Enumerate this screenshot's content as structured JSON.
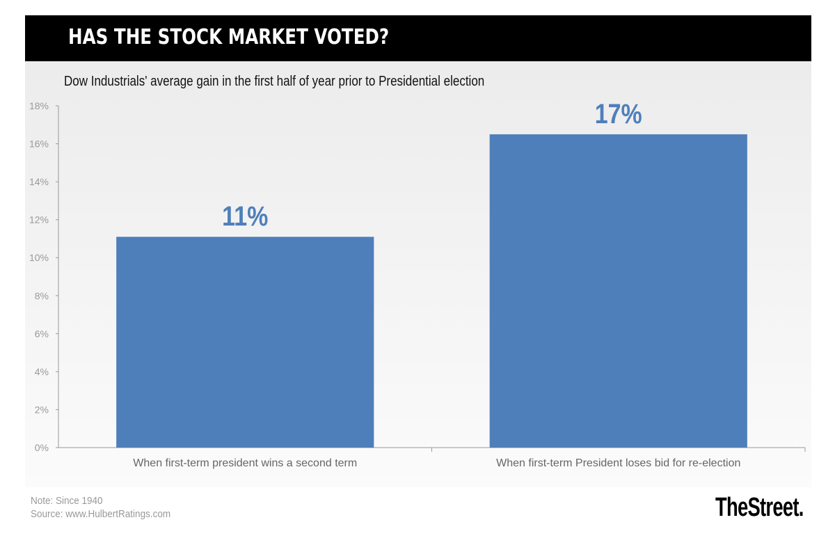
{
  "header": {
    "title": "HAS THE STOCK MARKET VOTED?"
  },
  "chart_data": {
    "type": "bar",
    "title": "HAS THE STOCK MARKET VOTED?",
    "subtitle": "Dow Industrials' average gain in the first half of year prior to Presidential election",
    "categories": [
      "When first-term president wins a second term",
      "When first-term President loses bid for re-election"
    ],
    "values": [
      11.1,
      16.5
    ],
    "data_labels": [
      "11%",
      "17%"
    ],
    "ylim": [
      0,
      18
    ],
    "yticks": [
      "0%",
      "2%",
      "4%",
      "6%",
      "8%",
      "10%",
      "12%",
      "14%",
      "16%",
      "18%"
    ],
    "xlabel": "",
    "ylabel": "",
    "bar_color": "#4e7fba",
    "label_color": "#4e7fba"
  },
  "footer": {
    "note": "Note: Since 1940",
    "source": "Source: www.HulbertRatings.com",
    "logo": "TheStreet."
  }
}
